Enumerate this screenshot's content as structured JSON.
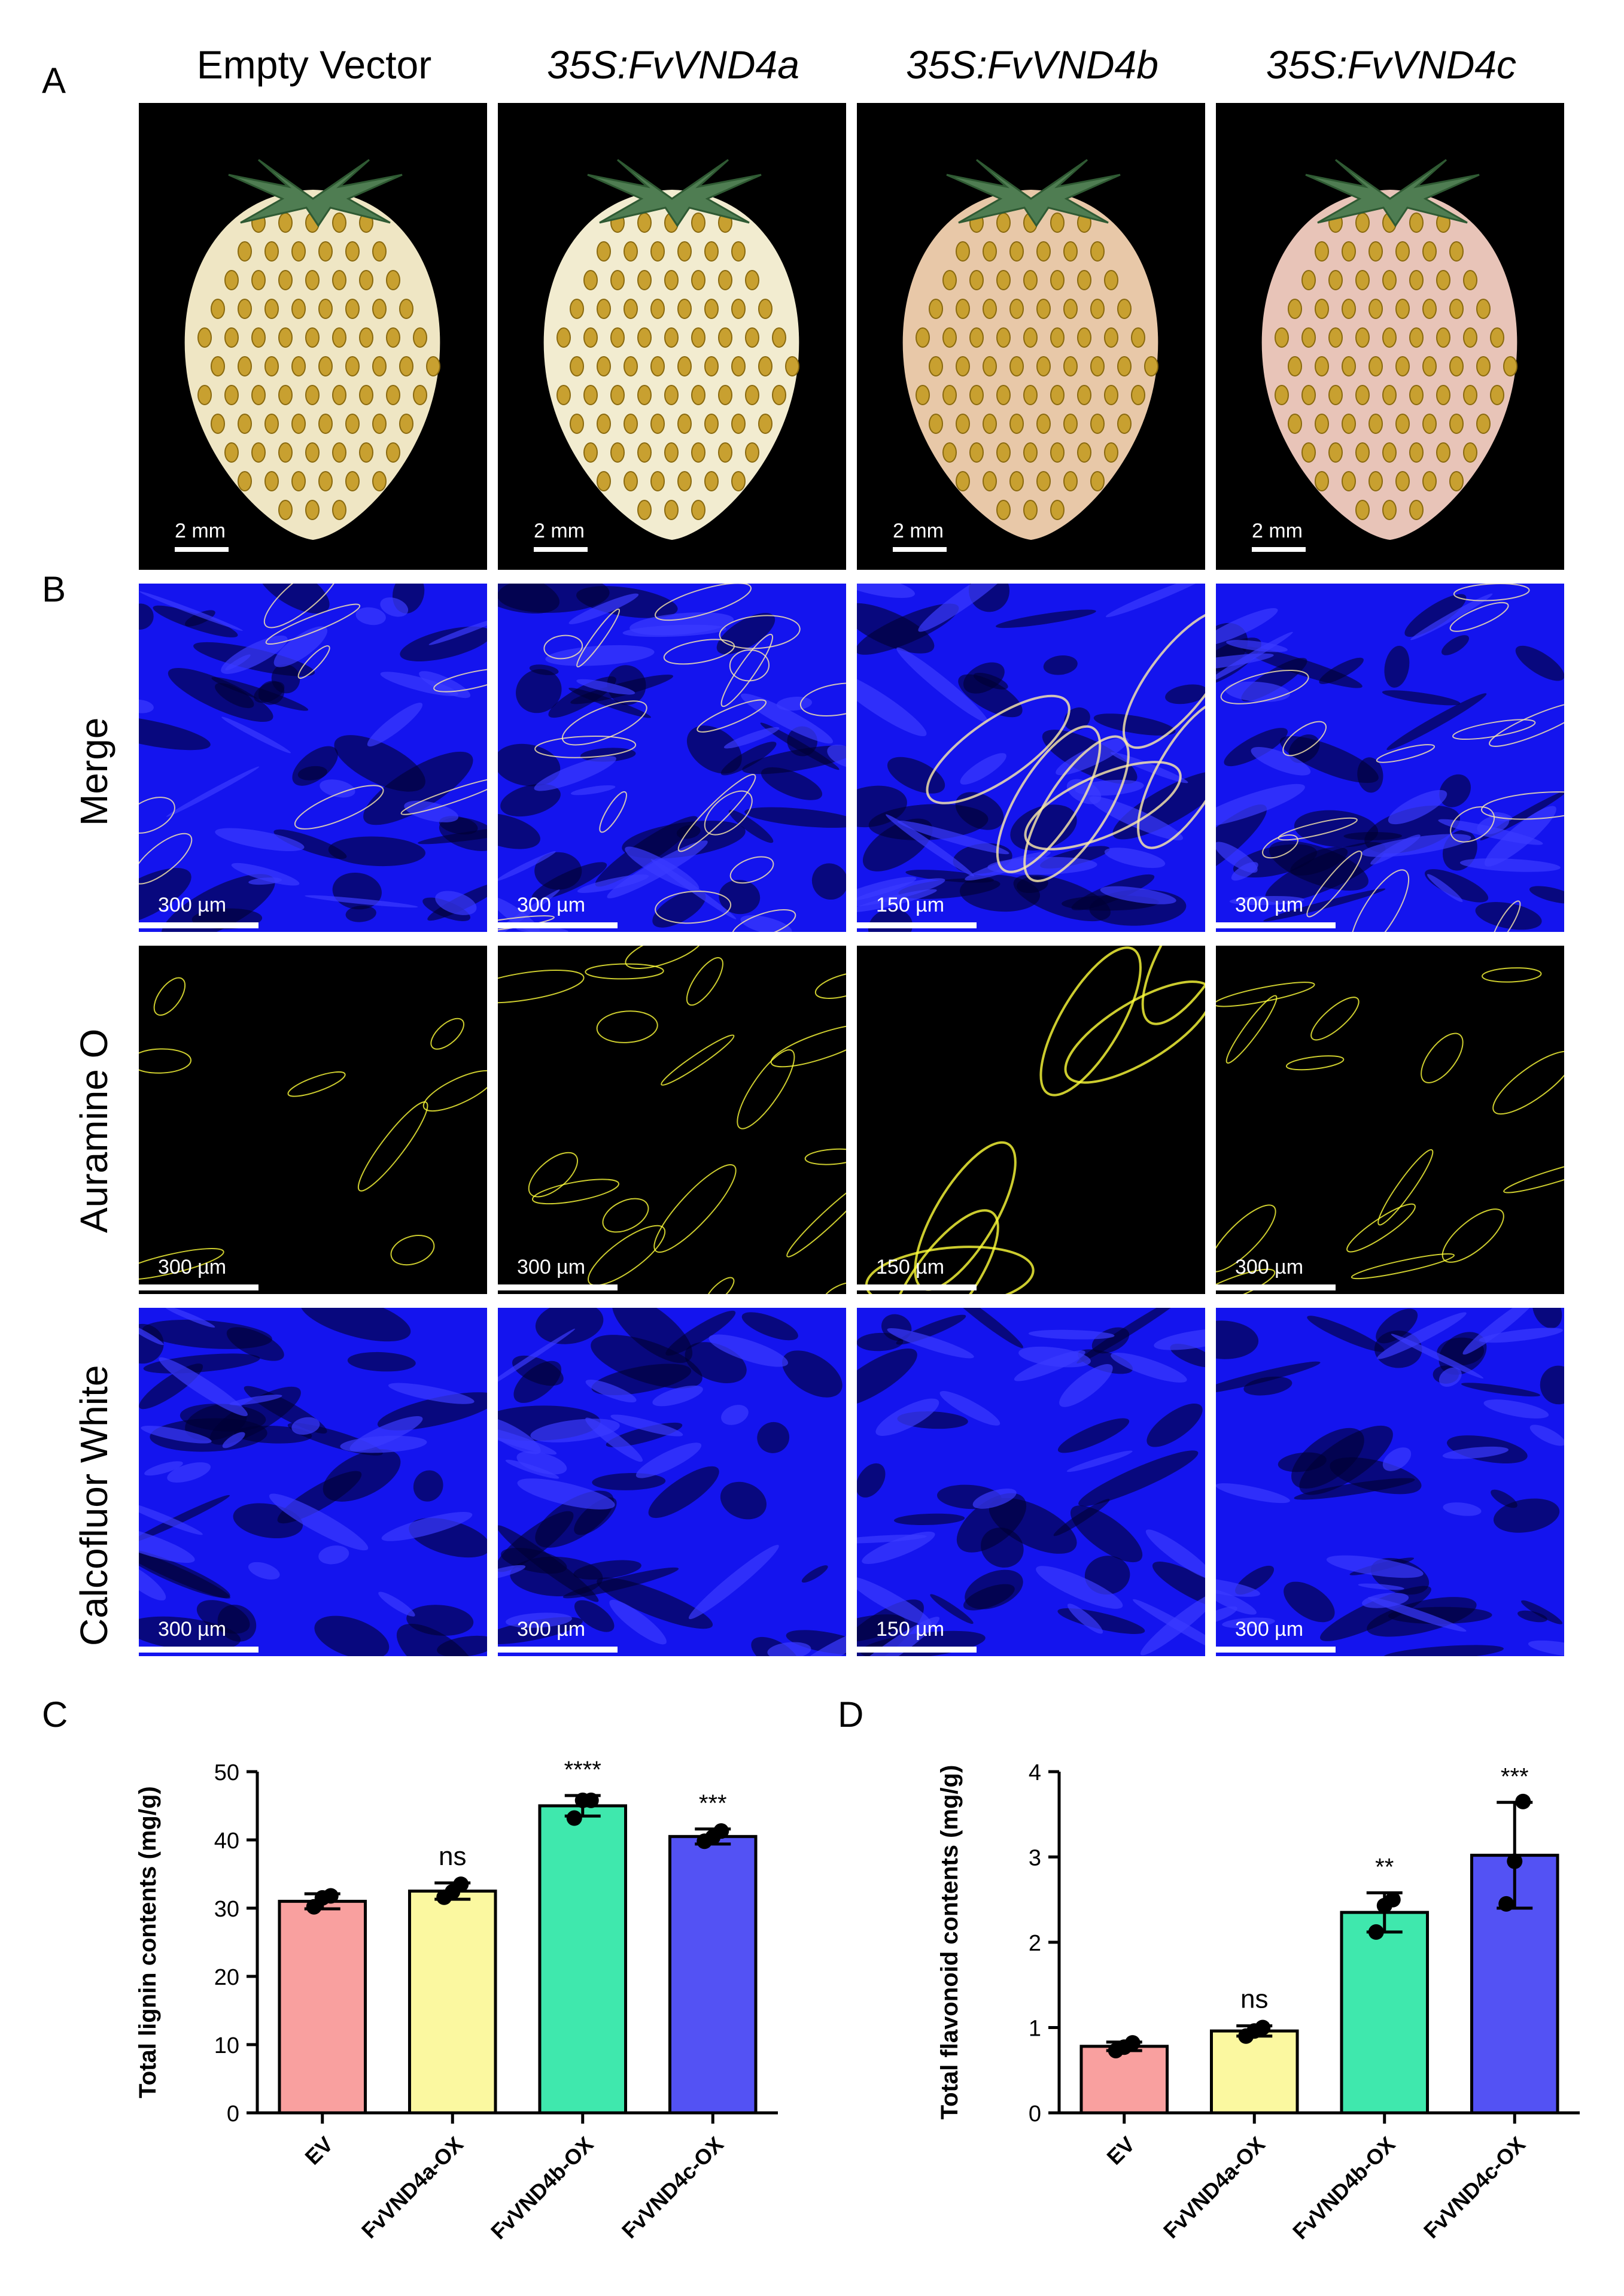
{
  "panels": {
    "A": "A",
    "B": "B",
    "C": "C",
    "D": "D"
  },
  "columns": [
    "Empty Vector",
    "35S:FvVND4a",
    "35S:FvVND4b",
    "35S:FvVND4c"
  ],
  "fruit_scale": [
    "2 mm",
    "2 mm",
    "2 mm",
    "2 mm"
  ],
  "rows": [
    {
      "label": "Merge",
      "scales": [
        "300 µm",
        "300 µm",
        "150 µm",
        "300 µm"
      ]
    },
    {
      "label": "Auramine O",
      "scales": [
        "300 µm",
        "300 µm",
        "150 µm",
        "300 µm"
      ]
    },
    {
      "label": "Calcofluor White",
      "scales": [
        "300 µm",
        "300 µm",
        "150 µm",
        "300 µm"
      ]
    }
  ],
  "colors": {
    "EV": "#f9a09f",
    "a": "#fbf8a0",
    "b": "#3fe8ad",
    "c": "#5352f4",
    "fluor_blue": "#1212ff",
    "fluor_yellow": "#ffff3a"
  },
  "chart_data": [
    {
      "type": "bar",
      "categories": [
        "EV",
        "FvVND4a-OX",
        "FvVND4b-OX",
        "FvVND4c-OX"
      ],
      "values": [
        31,
        32.5,
        45,
        40.5
      ],
      "errors": [
        1.1,
        1.2,
        1.5,
        1.1
      ],
      "points": [
        [
          30.2,
          31.5,
          31.8
        ],
        [
          31.6,
          32.4,
          33.5
        ],
        [
          43.2,
          45.8,
          45.8
        ],
        [
          39.8,
          40.4,
          41.3
        ]
      ],
      "significance": [
        "",
        "ns",
        "****",
        "***"
      ],
      "ylabel": "Total lignin contents (mg/g)",
      "ylim": [
        0,
        50
      ],
      "yticks": [
        "0",
        "10",
        "20",
        "30",
        "40",
        "50"
      ]
    },
    {
      "type": "bar",
      "categories": [
        "EV",
        "FvVND4a-OX",
        "FvVND4b-OX",
        "FvVND4c-OX"
      ],
      "values": [
        0.78,
        0.96,
        2.35,
        3.02
      ],
      "errors": [
        0.05,
        0.06,
        0.23,
        0.62
      ],
      "points": [
        [
          0.73,
          0.77,
          0.82
        ],
        [
          0.9,
          0.96,
          1.0
        ],
        [
          2.12,
          2.43,
          2.5
        ],
        [
          2.45,
          2.95,
          3.65
        ]
      ],
      "significance": [
        "",
        "ns",
        "**",
        "***"
      ],
      "ylabel": "Total flavonoid contents (mg/g)",
      "ylim": [
        0,
        4
      ],
      "yticks": [
        "0",
        "1",
        "2",
        "3",
        "4"
      ]
    }
  ]
}
